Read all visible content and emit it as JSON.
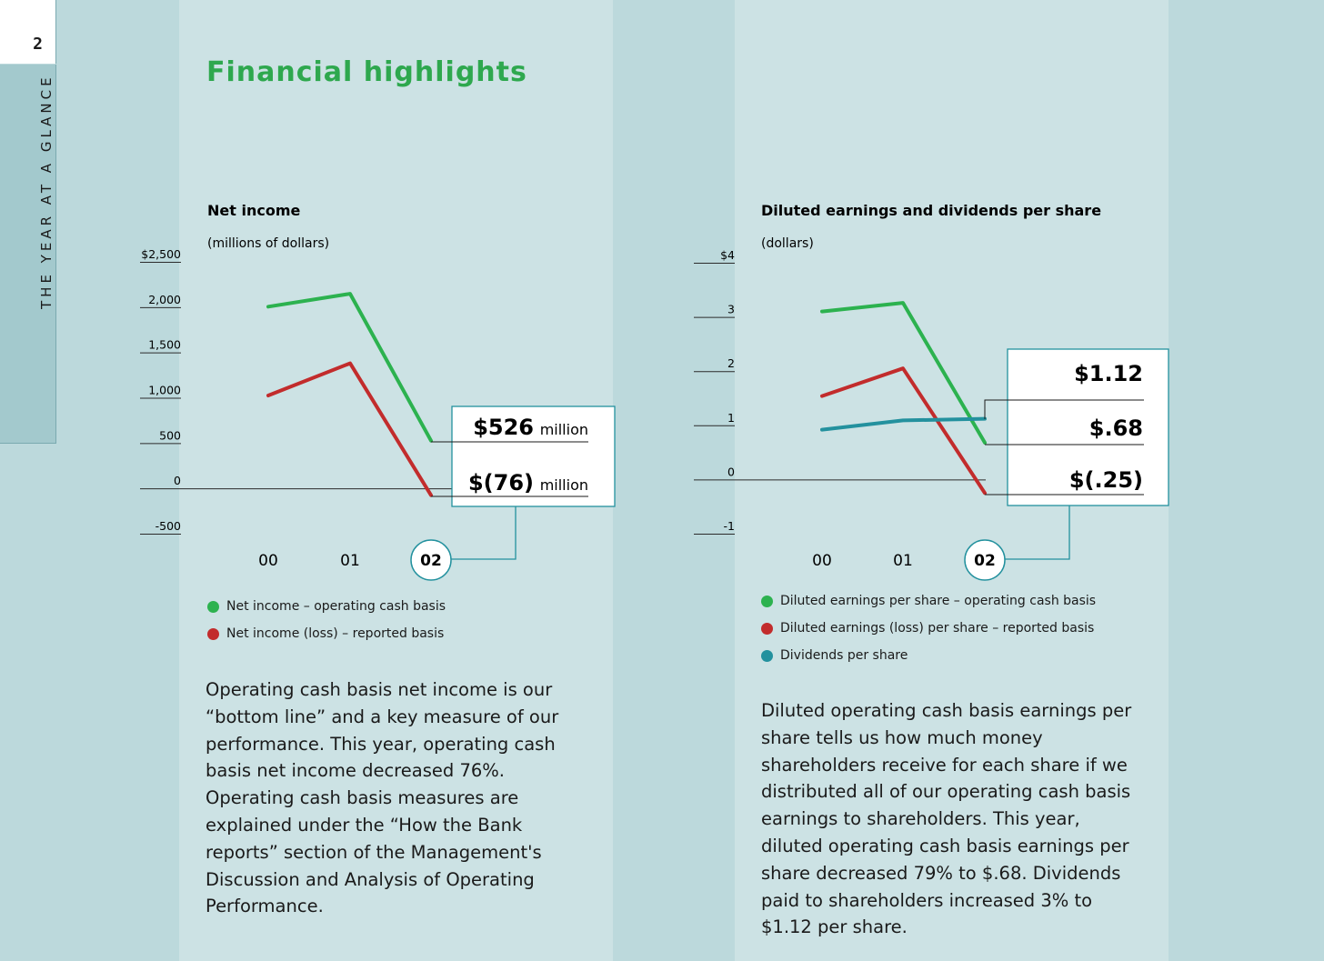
{
  "page": {
    "number": "2",
    "section_label": "THE YEAR AT A GLANCE",
    "title": "Financial highlights"
  },
  "colors": {
    "green": "#2cb24f",
    "red": "#c22c2c",
    "teal": "#23919e",
    "title_green": "#2ea84e"
  },
  "chart_data": [
    {
      "type": "line",
      "title": "Net income",
      "subtitle": "(millions of dollars)",
      "x": [
        "00",
        "01",
        "02"
      ],
      "y_ticks": [
        "$2,500",
        "2,000",
        "1,500",
        "1,000",
        "500",
        "0",
        "-500"
      ],
      "ylim": [
        -500,
        2500
      ],
      "series": [
        {
          "name": "Net income – operating cash basis",
          "color": "#2cb24f",
          "values": [
            2005,
            2148,
            526
          ]
        },
        {
          "name": "Net income (loss) – reported basis",
          "color": "#c22c2c",
          "values": [
            1025,
            1380,
            -76
          ]
        }
      ],
      "callouts": [
        {
          "value": "$526",
          "unit": "million"
        },
        {
          "value": "$(76)",
          "unit": "million"
        }
      ],
      "legend": "bottom"
    },
    {
      "type": "line",
      "title": "Diluted earnings and dividends per share",
      "subtitle": "(dollars)",
      "x": [
        "00",
        "01",
        "02"
      ],
      "y_ticks": [
        "$4",
        "3",
        "2",
        "1",
        "0",
        "-1"
      ],
      "ylim": [
        -1,
        4
      ],
      "series": [
        {
          "name": "Diluted earnings per share – operating cash basis",
          "color": "#2cb24f",
          "values": [
            3.1,
            3.26,
            0.68
          ]
        },
        {
          "name": "Diluted earnings (loss) per share – reported basis",
          "color": "#c22c2c",
          "values": [
            1.54,
            2.05,
            -0.25
          ]
        },
        {
          "name": "Dividends per share",
          "color": "#23919e",
          "values": [
            0.92,
            1.09,
            1.12
          ]
        }
      ],
      "callouts": [
        {
          "value": "$1.12",
          "unit": ""
        },
        {
          "value": "$.68",
          "unit": ""
        },
        {
          "value": "$(.25)",
          "unit": ""
        }
      ],
      "legend": "bottom"
    }
  ],
  "body": {
    "left": "Operating cash basis net income is our “bottom line” and a key measure of our performance. This year, operating cash basis net income decreased 76%. Operating cash basis measures are explained under the “How the Bank reports” section of the Management's Discussion and Analysis of Operating Performance.",
    "right": "Diluted operating cash basis earnings per share tells us how much money shareholders receive for each share if we distributed all of our operating cash basis earnings to shareholders. This year, diluted operating cash basis earnings per share decreased 79% to $.68. Dividends paid to shareholders increased 3% to $1.12 per share."
  }
}
